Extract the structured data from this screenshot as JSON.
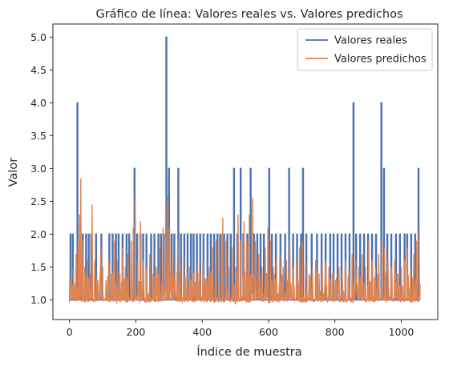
{
  "chart_data": {
    "type": "line",
    "title": "Gráfico de línea: Valores reales vs. Valores predichos",
    "xlabel": "Índice de muestra",
    "ylabel": "Valor",
    "xlim": [
      -50,
      1110
    ],
    "ylim": [
      0.7,
      5.2
    ],
    "xticks": [
      0,
      200,
      400,
      600,
      800,
      1000
    ],
    "yticks": [
      1.0,
      1.5,
      2.0,
      2.5,
      3.0,
      3.5,
      4.0,
      4.5,
      5.0
    ],
    "ytick_labels": [
      "1.0",
      "1.5",
      "2.0",
      "2.5",
      "3.0",
      "3.5",
      "4.0",
      "4.5",
      "5.0"
    ],
    "grid": false,
    "legend_position": "upper-right",
    "n_samples": 1058,
    "series": [
      {
        "name": "Valores reales",
        "color": "#4c72b0",
        "baseline": 1,
        "spikes": [
          [
            3,
            2
          ],
          [
            10,
            2
          ],
          [
            24,
            4
          ],
          [
            32,
            2
          ],
          [
            40,
            2
          ],
          [
            50,
            2
          ],
          [
            58,
            2
          ],
          [
            66,
            2
          ],
          [
            80,
            2
          ],
          [
            96,
            2
          ],
          [
            120,
            2
          ],
          [
            130,
            2
          ],
          [
            140,
            2
          ],
          [
            148,
            2
          ],
          [
            160,
            2
          ],
          [
            172,
            2
          ],
          [
            180,
            2
          ],
          [
            196,
            3
          ],
          [
            204,
            2
          ],
          [
            214,
            2
          ],
          [
            222,
            2
          ],
          [
            232,
            2
          ],
          [
            246,
            2
          ],
          [
            256,
            2
          ],
          [
            268,
            2
          ],
          [
            276,
            2
          ],
          [
            284,
            2
          ],
          [
            292,
            5
          ],
          [
            300,
            3
          ],
          [
            308,
            2
          ],
          [
            316,
            2
          ],
          [
            328,
            3
          ],
          [
            336,
            2
          ],
          [
            346,
            2
          ],
          [
            356,
            2
          ],
          [
            366,
            2
          ],
          [
            374,
            2
          ],
          [
            384,
            2
          ],
          [
            394,
            2
          ],
          [
            404,
            2
          ],
          [
            416,
            2
          ],
          [
            426,
            2
          ],
          [
            436,
            2
          ],
          [
            446,
            2
          ],
          [
            456,
            2
          ],
          [
            466,
            2
          ],
          [
            476,
            2
          ],
          [
            486,
            2
          ],
          [
            496,
            3
          ],
          [
            506,
            2
          ],
          [
            516,
            3
          ],
          [
            524,
            2
          ],
          [
            536,
            2
          ],
          [
            546,
            3
          ],
          [
            556,
            2
          ],
          [
            566,
            2
          ],
          [
            576,
            2
          ],
          [
            586,
            2
          ],
          [
            602,
            3
          ],
          [
            610,
            2
          ],
          [
            622,
            2
          ],
          [
            636,
            2
          ],
          [
            650,
            2
          ],
          [
            662,
            3
          ],
          [
            674,
            2
          ],
          [
            686,
            2
          ],
          [
            698,
            2
          ],
          [
            704,
            3
          ],
          [
            714,
            2
          ],
          [
            730,
            2
          ],
          [
            746,
            2
          ],
          [
            760,
            2
          ],
          [
            772,
            2
          ],
          [
            786,
            2
          ],
          [
            796,
            2
          ],
          [
            808,
            2
          ],
          [
            820,
            2
          ],
          [
            832,
            2
          ],
          [
            844,
            2
          ],
          [
            856,
            4
          ],
          [
            864,
            2
          ],
          [
            876,
            2
          ],
          [
            888,
            2
          ],
          [
            900,
            2
          ],
          [
            912,
            2
          ],
          [
            924,
            2
          ],
          [
            940,
            4
          ],
          [
            948,
            3
          ],
          [
            958,
            2
          ],
          [
            970,
            2
          ],
          [
            984,
            2
          ],
          [
            996,
            2
          ],
          [
            1010,
            2
          ],
          [
            1018,
            2
          ],
          [
            1030,
            2
          ],
          [
            1042,
            2
          ],
          [
            1052,
            3
          ]
        ]
      },
      {
        "name": "Valores predichos",
        "color": "#dd8452",
        "baseline": 1.0,
        "peaks": [
          [
            1,
            1.4
          ],
          [
            6,
            1.3
          ],
          [
            12,
            1.5
          ],
          [
            20,
            1.7
          ],
          [
            26,
            1.9
          ],
          [
            30,
            2.3
          ],
          [
            34,
            2.85
          ],
          [
            40,
            1.9
          ],
          [
            46,
            1.5
          ],
          [
            54,
            1.6
          ],
          [
            62,
            1.4
          ],
          [
            68,
            2.45
          ],
          [
            76,
            1.6
          ],
          [
            86,
            1.3
          ],
          [
            94,
            1.8
          ],
          [
            100,
            1.5
          ],
          [
            110,
            1.3
          ],
          [
            118,
            1.6
          ],
          [
            126,
            1.4
          ],
          [
            136,
            1.9
          ],
          [
            144,
            1.6
          ],
          [
            152,
            1.4
          ],
          [
            160,
            1.8
          ],
          [
            168,
            1.5
          ],
          [
            176,
            1.7
          ],
          [
            186,
            1.9
          ],
          [
            192,
            2.1
          ],
          [
            198,
            2.55
          ],
          [
            206,
            1.6
          ],
          [
            214,
            2.2
          ],
          [
            222,
            1.6
          ],
          [
            232,
            1.5
          ],
          [
            242,
            1.7
          ],
          [
            252,
            1.4
          ],
          [
            262,
            1.5
          ],
          [
            272,
            1.8
          ],
          [
            282,
            2.1
          ],
          [
            290,
            2.5
          ],
          [
            296,
            2.6
          ],
          [
            302,
            2.1
          ],
          [
            310,
            1.7
          ],
          [
            318,
            1.4
          ],
          [
            326,
            1.9
          ],
          [
            334,
            1.5
          ],
          [
            344,
            1.6
          ],
          [
            354,
            1.4
          ],
          [
            362,
            1.5
          ],
          [
            372,
            1.4
          ],
          [
            382,
            1.5
          ],
          [
            392,
            1.4
          ],
          [
            402,
            1.6
          ],
          [
            412,
            1.3
          ],
          [
            422,
            1.5
          ],
          [
            432,
            1.8
          ],
          [
            442,
            1.9
          ],
          [
            452,
            2.0
          ],
          [
            462,
            2.25
          ],
          [
            472,
            1.9
          ],
          [
            482,
            1.5
          ],
          [
            492,
            1.8
          ],
          [
            500,
            2.25
          ],
          [
            508,
            2.3
          ],
          [
            516,
            1.9
          ],
          [
            526,
            2.2
          ],
          [
            534,
            1.9
          ],
          [
            542,
            2.3
          ],
          [
            552,
            2.55
          ],
          [
            560,
            1.9
          ],
          [
            570,
            1.7
          ],
          [
            580,
            1.5
          ],
          [
            590,
            1.8
          ],
          [
            598,
            2.1
          ],
          [
            606,
            1.9
          ],
          [
            614,
            1.5
          ],
          [
            624,
            1.6
          ],
          [
            634,
            1.7
          ],
          [
            644,
            1.5
          ],
          [
            654,
            1.6
          ],
          [
            664,
            1.9
          ],
          [
            674,
            1.5
          ],
          [
            684,
            1.6
          ],
          [
            694,
            1.8
          ],
          [
            702,
            1.9
          ],
          [
            712,
            1.6
          ],
          [
            722,
            1.4
          ],
          [
            732,
            1.5
          ],
          [
            742,
            1.6
          ],
          [
            752,
            1.4
          ],
          [
            762,
            1.5
          ],
          [
            772,
            1.6
          ],
          [
            782,
            1.5
          ],
          [
            792,
            1.4
          ],
          [
            802,
            1.3
          ],
          [
            812,
            1.5
          ],
          [
            822,
            1.4
          ],
          [
            832,
            1.6
          ],
          [
            842,
            1.5
          ],
          [
            852,
            1.7
          ],
          [
            862,
            1.6
          ],
          [
            872,
            1.5
          ],
          [
            882,
            1.7
          ],
          [
            892,
            1.5
          ],
          [
            902,
            1.9
          ],
          [
            912,
            1.6
          ],
          [
            922,
            1.5
          ],
          [
            932,
            1.7
          ],
          [
            942,
            1.9
          ],
          [
            950,
            1.8
          ],
          [
            960,
            1.6
          ],
          [
            970,
            1.5
          ],
          [
            980,
            1.6
          ],
          [
            990,
            1.4
          ],
          [
            1000,
            1.5
          ],
          [
            1010,
            1.6
          ],
          [
            1018,
            1.8
          ],
          [
            1028,
            1.5
          ],
          [
            1038,
            1.7
          ],
          [
            1046,
            1.9
          ],
          [
            1054,
            2.05
          ]
        ]
      }
    ]
  }
}
